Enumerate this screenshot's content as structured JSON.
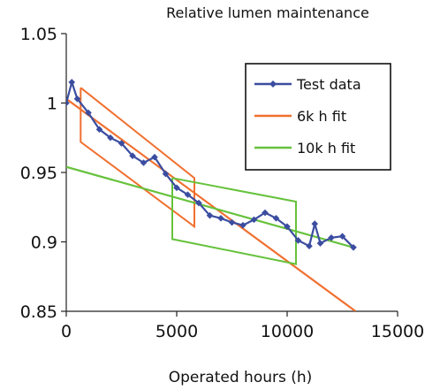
{
  "chart_data": {
    "type": "line",
    "title": "Relative lumen maintenance",
    "xlabel": "Operated hours (h)",
    "ylabel": "",
    "xlim": [
      0,
      15000
    ],
    "ylim": [
      0.85,
      1.05
    ],
    "x_ticks": [
      "0",
      "5000",
      "10000",
      "15000"
    ],
    "y_ticks": [
      "0.85",
      "0.9",
      "0.95",
      "1",
      "1.05"
    ],
    "x_tick_values": [
      0,
      5000,
      10000,
      15000
    ],
    "y_tick_values": [
      0.85,
      0.9,
      0.95,
      1.0,
      1.05
    ],
    "grid": false,
    "legend_position": "top-right",
    "series": [
      {
        "name": "Test data",
        "color": "#3b4da0",
        "marker": "diamond",
        "x": [
          0,
          250,
          500,
          1000,
          1500,
          2000,
          2500,
          3000,
          3500,
          4000,
          4500,
          5000,
          5500,
          6000,
          6500,
          7000,
          7500,
          8000,
          8500,
          9000,
          9500,
          10000,
          10500,
          11000,
          11250,
          11500,
          12000,
          12500,
          13000
        ],
        "y": [
          1.0,
          1.015,
          1.003,
          0.993,
          0.981,
          0.975,
          0.971,
          0.962,
          0.957,
          0.961,
          0.949,
          0.939,
          0.934,
          0.928,
          0.919,
          0.917,
          0.914,
          0.912,
          0.916,
          0.921,
          0.917,
          0.911,
          0.901,
          0.897,
          0.913,
          0.899,
          0.903,
          0.904,
          0.896
        ]
      },
      {
        "name": "6k h fit",
        "color": "#f07030",
        "x": [
          0,
          13100
        ],
        "y": [
          1.003,
          0.85
        ],
        "band": [
          [
            650,
            1.011
          ],
          [
            5800,
            0.946
          ],
          [
            5800,
            0.911
          ],
          [
            650,
            0.972
          ],
          [
            650,
            1.011
          ]
        ]
      },
      {
        "name": "10k h fit",
        "color": "#66c23c",
        "x": [
          0,
          13000
        ],
        "y": [
          0.954,
          0.896
        ],
        "band": [
          [
            4800,
            0.946
          ],
          [
            10400,
            0.929
          ],
          [
            10400,
            0.884
          ],
          [
            4800,
            0.902
          ],
          [
            4800,
            0.946
          ]
        ]
      }
    ]
  }
}
